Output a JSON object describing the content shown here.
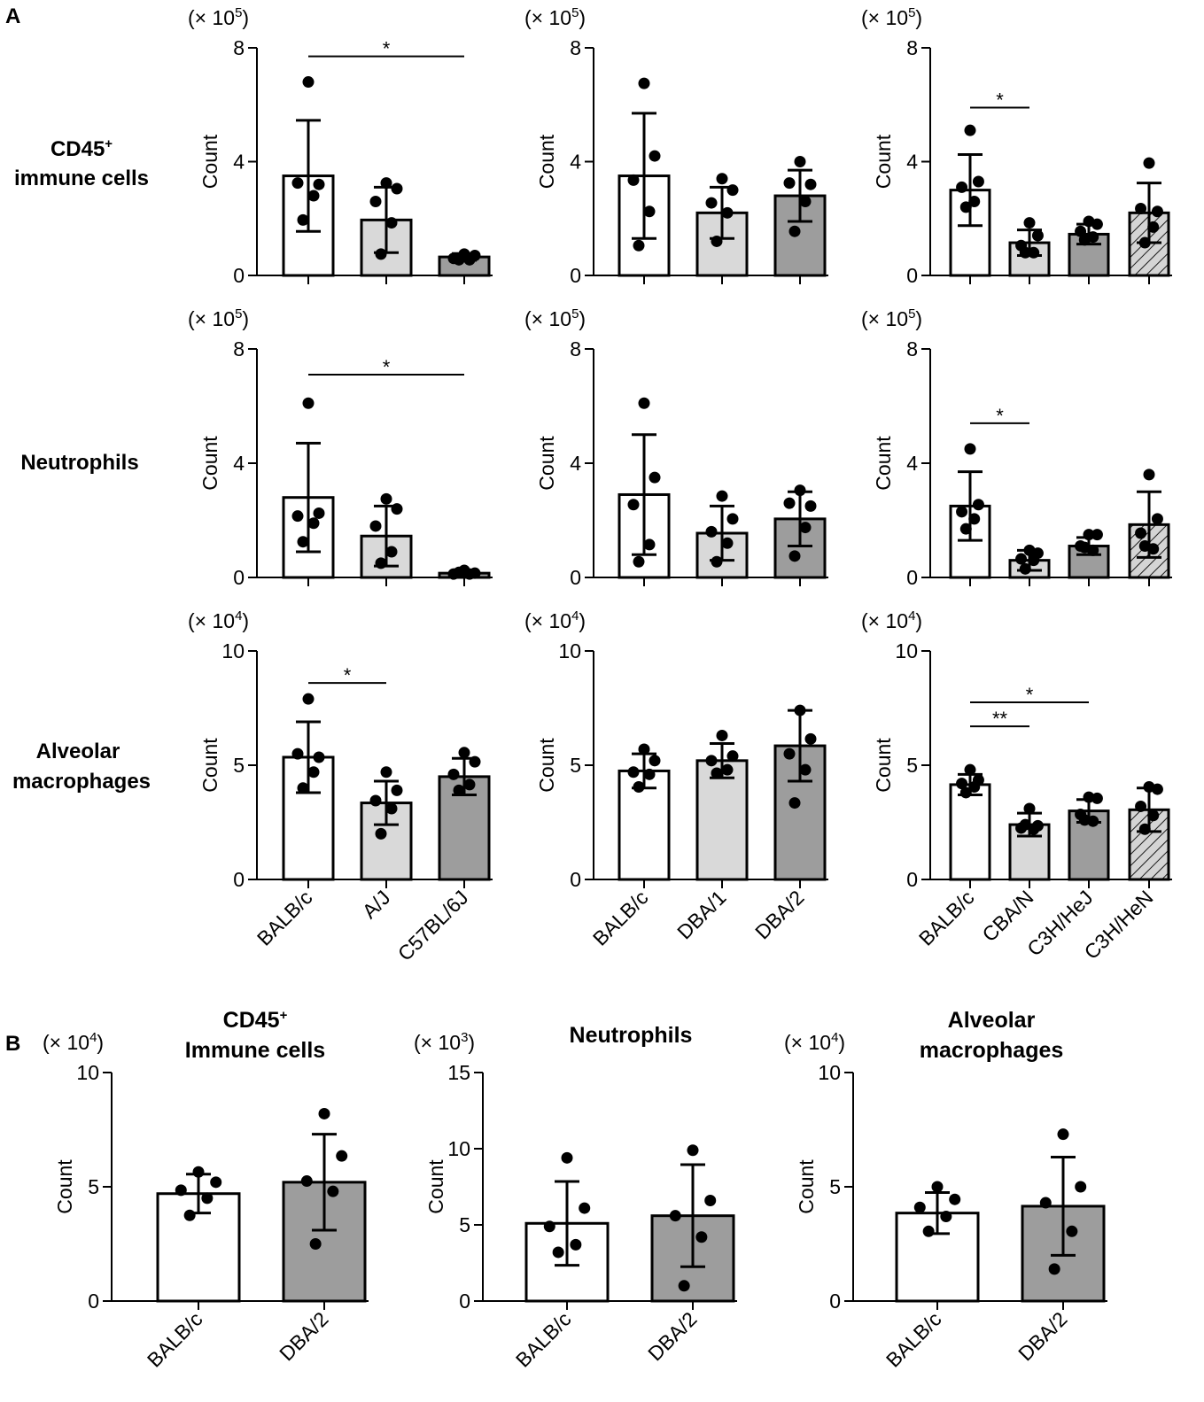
{
  "panel_labels": {
    "a": "A",
    "b": "B"
  },
  "row_labels": {
    "cd45": {
      "line1": "CD45",
      "sup": "+",
      "line2": "immune cells"
    },
    "neutrophils": {
      "line1": "Neutrophils"
    },
    "am": {
      "line1": "Alveolar",
      "line2": "macrophages"
    }
  },
  "panel_b_titles": [
    {
      "line1": "CD45",
      "sup": "+",
      "line2": "Immune cells"
    },
    {
      "line1": "Neutrophils",
      "line2": ""
    },
    {
      "line1": "Alveolar",
      "line2": "macrophages"
    }
  ],
  "colors": {
    "white": "#ffffff",
    "light_gray": "#d9d9d9",
    "dark_gray": "#9d9d9d",
    "black": "#000000"
  },
  "chart_data": [
    {
      "id": "A-cd45-1",
      "type": "bar",
      "title": "",
      "ylabel": "Count",
      "scale_prefix": "(× 10",
      "scale_exp": "5",
      "scale_suffix": ")",
      "ylim": [
        0,
        8
      ],
      "yticks": [
        "0",
        "4",
        "8"
      ],
      "categories": [
        "BALB/c",
        "A/J",
        "C57BL/6J"
      ],
      "show_xlabels": false,
      "fills": [
        "white",
        "light",
        "dark"
      ],
      "values": [
        3.5,
        1.95,
        0.65
      ],
      "errors": [
        1.95,
        1.15,
        0.12
      ],
      "points": [
        [
          6.8,
          3.2,
          3.25,
          2.8,
          1.95
        ],
        [
          3.25,
          3.05,
          2.6,
          1.85,
          0.75
        ],
        [
          0.75,
          0.7,
          0.6,
          0.55,
          0.55
        ]
      ],
      "significance": [
        {
          "from": 0,
          "to": 2,
          "label": "*",
          "y": 7.7
        }
      ]
    },
    {
      "id": "A-cd45-2",
      "type": "bar",
      "title": "",
      "ylabel": "Count",
      "scale_prefix": "(× 10",
      "scale_exp": "5",
      "scale_suffix": ")",
      "ylim": [
        0,
        8
      ],
      "yticks": [
        "0",
        "4",
        "8"
      ],
      "categories": [
        "BALB/c",
        "DBA/1",
        "DBA/2"
      ],
      "show_xlabels": false,
      "fills": [
        "white",
        "light",
        "dark"
      ],
      "values": [
        3.5,
        2.2,
        2.8
      ],
      "errors": [
        2.2,
        0.9,
        0.9
      ],
      "points": [
        [
          6.75,
          4.2,
          3.35,
          2.25,
          1.05
        ],
        [
          3.4,
          3.0,
          2.55,
          2.2,
          1.2
        ],
        [
          4.0,
          3.2,
          3.25,
          2.6,
          1.55
        ]
      ],
      "significance": []
    },
    {
      "id": "A-cd45-3",
      "type": "bar",
      "title": "",
      "ylabel": "Count",
      "scale_prefix": "(× 10",
      "scale_exp": "5",
      "scale_suffix": ")",
      "ylim": [
        0,
        8
      ],
      "yticks": [
        "0",
        "4",
        "8"
      ],
      "categories": [
        "BALB/c",
        "CBA/N",
        "C3H/HeJ",
        "C3H/HeN"
      ],
      "show_xlabels": false,
      "fills": [
        "white",
        "light",
        "dark",
        "hatch"
      ],
      "values": [
        3.0,
        1.15,
        1.45,
        2.2
      ],
      "errors": [
        1.25,
        0.45,
        0.35,
        1.05
      ],
      "points": [
        [
          5.1,
          3.3,
          3.1,
          2.6,
          2.4
        ],
        [
          1.85,
          1.4,
          1.05,
          0.8,
          0.8
        ],
        [
          1.9,
          1.8,
          1.55,
          1.35,
          1.25
        ],
        [
          3.95,
          2.25,
          2.35,
          1.7,
          1.15
        ]
      ],
      "significance": [
        {
          "from": 0,
          "to": 1,
          "label": "*",
          "y": 5.9
        }
      ]
    },
    {
      "id": "A-neut-1",
      "type": "bar",
      "title": "",
      "ylabel": "Count",
      "scale_prefix": "(× 10",
      "scale_exp": "5",
      "scale_suffix": ")",
      "ylim": [
        0,
        8
      ],
      "yticks": [
        "0",
        "4",
        "8"
      ],
      "categories": [
        "BALB/c",
        "A/J",
        "C57BL/6J"
      ],
      "show_xlabels": false,
      "fills": [
        "white",
        "light",
        "dark"
      ],
      "values": [
        2.8,
        1.45,
        0.15
      ],
      "errors": [
        1.9,
        1.05,
        0.06
      ],
      "points": [
        [
          6.1,
          2.25,
          2.15,
          1.9,
          1.25
        ],
        [
          2.75,
          2.4,
          1.8,
          0.9,
          0.5
        ],
        [
          0.25,
          0.15,
          0.12,
          0.12,
          0.18
        ]
      ],
      "significance": [
        {
          "from": 0,
          "to": 2,
          "label": "*",
          "y": 7.1
        }
      ]
    },
    {
      "id": "A-neut-2",
      "type": "bar",
      "title": "",
      "ylabel": "Count",
      "scale_prefix": "(× 10",
      "scale_exp": "5",
      "scale_suffix": ")",
      "ylim": [
        0,
        8
      ],
      "yticks": [
        "0",
        "4",
        "8"
      ],
      "categories": [
        "BALB/c",
        "DBA/1",
        "DBA/2"
      ],
      "show_xlabels": false,
      "fills": [
        "white",
        "light",
        "dark"
      ],
      "values": [
        2.9,
        1.55,
        2.05
      ],
      "errors": [
        2.1,
        0.95,
        0.95
      ],
      "points": [
        [
          6.1,
          3.5,
          2.55,
          1.15,
          0.55
        ],
        [
          2.85,
          2.05,
          1.6,
          1.2,
          0.55
        ],
        [
          3.05,
          2.5,
          2.6,
          1.75,
          0.75
        ]
      ],
      "significance": []
    },
    {
      "id": "A-neut-3",
      "type": "bar",
      "title": "",
      "ylabel": "Count",
      "scale_prefix": "(× 10",
      "scale_exp": "5",
      "scale_suffix": ")",
      "ylim": [
        0,
        8
      ],
      "yticks": [
        "0",
        "4",
        "8"
      ],
      "categories": [
        "BALB/c",
        "CBA/N",
        "C3H/HeJ",
        "C3H/HeN"
      ],
      "show_xlabels": false,
      "fills": [
        "white",
        "light",
        "dark",
        "hatch"
      ],
      "values": [
        2.5,
        0.6,
        1.1,
        1.85
      ],
      "errors": [
        1.2,
        0.35,
        0.3,
        1.15
      ],
      "points": [
        [
          4.5,
          2.55,
          2.3,
          2.05,
          1.7
        ],
        [
          0.95,
          0.85,
          0.65,
          0.6,
          0.3
        ],
        [
          1.5,
          1.5,
          1.1,
          0.95,
          1.05
        ],
        [
          3.6,
          2.05,
          1.55,
          1.0,
          1.1
        ]
      ],
      "significance": [
        {
          "from": 0,
          "to": 1,
          "label": "*",
          "y": 5.4
        }
      ]
    },
    {
      "id": "A-am-1",
      "type": "bar",
      "title": "",
      "ylabel": "Count",
      "scale_prefix": "(× 10",
      "scale_exp": "4",
      "scale_suffix": ")",
      "ylim": [
        0,
        10
      ],
      "yticks": [
        "0",
        "5",
        "10"
      ],
      "categories": [
        "BALB/c",
        "A/J",
        "C57BL/6J"
      ],
      "show_xlabels": true,
      "fills": [
        "white",
        "light",
        "dark"
      ],
      "values": [
        5.35,
        3.35,
        4.5
      ],
      "errors": [
        1.55,
        0.95,
        0.8
      ],
      "points": [
        [
          7.9,
          5.35,
          5.5,
          4.7,
          4.0
        ],
        [
          4.7,
          3.9,
          3.45,
          3.1,
          2.0
        ],
        [
          5.55,
          5.15,
          4.6,
          4.15,
          3.9
        ]
      ],
      "significance": [
        {
          "from": 0,
          "to": 1,
          "label": "*",
          "y": 8.6
        }
      ]
    },
    {
      "id": "A-am-2",
      "type": "bar",
      "title": "",
      "ylabel": "Count",
      "scale_prefix": "(× 10",
      "scale_exp": "4",
      "scale_suffix": ")",
      "ylim": [
        0,
        10
      ],
      "yticks": [
        "0",
        "5",
        "10"
      ],
      "categories": [
        "BALB/c",
        "DBA/1",
        "DBA/2"
      ],
      "show_xlabels": true,
      "fills": [
        "white",
        "light",
        "dark"
      ],
      "values": [
        4.75,
        5.2,
        5.85
      ],
      "errors": [
        0.75,
        0.75,
        1.55
      ],
      "points": [
        [
          5.7,
          5.2,
          4.7,
          4.6,
          4.05
        ],
        [
          6.3,
          5.4,
          5.2,
          4.8,
          4.65
        ],
        [
          7.4,
          6.15,
          5.5,
          4.8,
          3.35
        ]
      ],
      "significance": []
    },
    {
      "id": "A-am-3",
      "type": "bar",
      "title": "",
      "ylabel": "Count",
      "scale_prefix": "(× 10",
      "scale_exp": "4",
      "scale_suffix": ")",
      "ylim": [
        0,
        10
      ],
      "yticks": [
        "0",
        "5",
        "10"
      ],
      "categories": [
        "BALB/c",
        "CBA/N",
        "C3H/HeJ",
        "C3H/HeN"
      ],
      "show_xlabels": true,
      "fills": [
        "white",
        "light",
        "dark",
        "hatch"
      ],
      "values": [
        4.15,
        2.4,
        3.0,
        3.05
      ],
      "errors": [
        0.45,
        0.5,
        0.5,
        0.95
      ],
      "points": [
        [
          4.8,
          4.35,
          4.2,
          4.05,
          3.8
        ],
        [
          3.1,
          2.35,
          2.25,
          2.2,
          2.4
        ],
        [
          3.6,
          3.55,
          2.85,
          2.55,
          2.6
        ],
        [
          4.05,
          3.95,
          3.2,
          2.8,
          2.2
        ]
      ],
      "significance": [
        {
          "from": 0,
          "to": 1,
          "label": "**",
          "y": 6.7
        },
        {
          "from": 0,
          "to": 2,
          "label": "*",
          "y": 7.75
        }
      ]
    },
    {
      "id": "B-cd45",
      "type": "bar",
      "title": "CD45+ Immune cells",
      "ylabel": "Count",
      "scale_prefix": "(× 10",
      "scale_exp": "4",
      "scale_suffix": ")",
      "ylim": [
        0,
        10
      ],
      "yticks": [
        "0",
        "5",
        "10"
      ],
      "categories": [
        "BALB/c",
        "DBA/2"
      ],
      "show_xlabels": true,
      "fills": [
        "white",
        "dark"
      ],
      "values": [
        4.7,
        5.2
      ],
      "errors": [
        0.85,
        2.1
      ],
      "points": [
        [
          5.65,
          5.2,
          4.85,
          4.5,
          3.75
        ],
        [
          8.2,
          6.35,
          5.25,
          4.8,
          2.5
        ]
      ],
      "significance": []
    },
    {
      "id": "B-neut",
      "type": "bar",
      "title": "Neutrophils",
      "ylabel": "Count",
      "scale_prefix": "(× 10",
      "scale_exp": "3",
      "scale_suffix": ")",
      "ylim": [
        0,
        15
      ],
      "yticks": [
        "0",
        "5",
        "10",
        "15"
      ],
      "categories": [
        "BALB/c",
        "DBA/2"
      ],
      "show_xlabels": true,
      "fills": [
        "white",
        "dark"
      ],
      "values": [
        5.1,
        5.6
      ],
      "errors": [
        2.75,
        3.35
      ],
      "points": [
        [
          9.4,
          6.1,
          4.9,
          3.7,
          3.2
        ],
        [
          9.9,
          6.6,
          5.6,
          4.2,
          1.0
        ]
      ],
      "significance": []
    },
    {
      "id": "B-am",
      "type": "bar",
      "title": "Alveolar macrophages",
      "ylabel": "Count",
      "scale_prefix": "(× 10",
      "scale_exp": "4",
      "scale_suffix": ")",
      "ylim": [
        0,
        10
      ],
      "yticks": [
        "0",
        "5",
        "10"
      ],
      "categories": [
        "BALB/c",
        "DBA/2"
      ],
      "show_xlabels": true,
      "fills": [
        "white",
        "dark"
      ],
      "values": [
        3.85,
        4.15
      ],
      "errors": [
        0.9,
        2.15
      ],
      "points": [
        [
          5.0,
          4.45,
          4.1,
          3.7,
          3.05
        ],
        [
          7.3,
          5.0,
          4.3,
          3.05,
          1.4
        ]
      ],
      "significance": []
    }
  ]
}
